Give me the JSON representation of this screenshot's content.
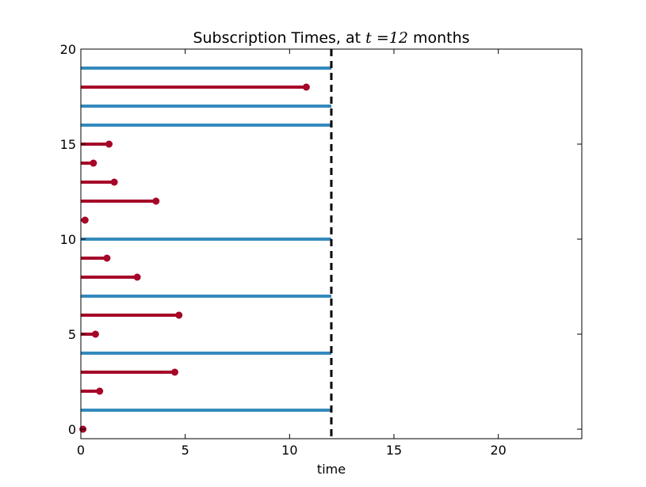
{
  "chart_data": {
    "type": "line",
    "title_parts": {
      "prefix": "Subscription Times, at ",
      "math_var": "t",
      "math_op": " =12 ",
      "suffix": " months"
    },
    "xlabel": "time",
    "ylabel": "",
    "xlim": [
      0,
      24
    ],
    "ylim": [
      -0.5,
      20
    ],
    "x_ticks": [
      0,
      5,
      10,
      15,
      20
    ],
    "y_ticks": [
      0,
      5,
      10,
      15,
      20
    ],
    "grid": false,
    "cutoff_time": 12,
    "colors": {
      "censored": "#348ABD",
      "observed": "#A60628",
      "cutoff_line": "#000000"
    },
    "series": [
      {
        "subject": 0,
        "end": 0.1,
        "censored": false
      },
      {
        "subject": 1,
        "end": 12,
        "censored": true
      },
      {
        "subject": 2,
        "end": 0.9,
        "censored": false
      },
      {
        "subject": 3,
        "end": 4.5,
        "censored": false
      },
      {
        "subject": 4,
        "end": 12,
        "censored": true
      },
      {
        "subject": 5,
        "end": 0.7,
        "censored": false
      },
      {
        "subject": 6,
        "end": 4.7,
        "censored": false
      },
      {
        "subject": 7,
        "end": 12,
        "censored": true
      },
      {
        "subject": 8,
        "end": 2.7,
        "censored": false
      },
      {
        "subject": 9,
        "end": 1.25,
        "censored": false
      },
      {
        "subject": 10,
        "end": 12,
        "censored": true
      },
      {
        "subject": 11,
        "end": 0.2,
        "censored": false
      },
      {
        "subject": 12,
        "end": 3.6,
        "censored": false
      },
      {
        "subject": 13,
        "end": 1.6,
        "censored": false
      },
      {
        "subject": 14,
        "end": 0.6,
        "censored": false
      },
      {
        "subject": 15,
        "end": 1.35,
        "censored": false
      },
      {
        "subject": 16,
        "end": 12,
        "censored": true
      },
      {
        "subject": 17,
        "end": 12,
        "censored": true
      },
      {
        "subject": 18,
        "end": 10.8,
        "censored": false
      },
      {
        "subject": 19,
        "end": 12,
        "censored": true
      }
    ]
  }
}
